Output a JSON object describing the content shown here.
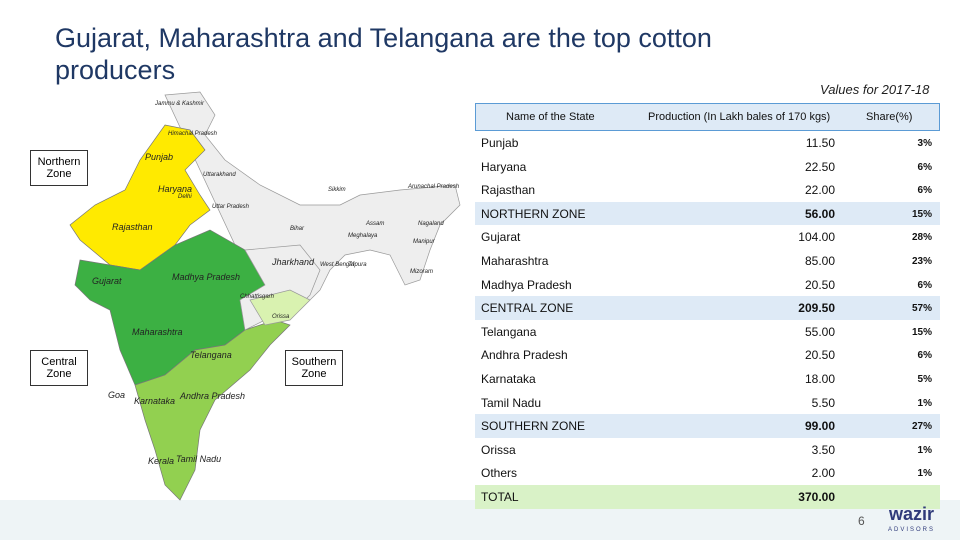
{
  "title": "Gujarat, Maharashtra and Telangana are the top cotton producers",
  "subtitle": "Values for 2017-18",
  "map": {
    "zones": [
      "Northern Zone",
      "Central Zone",
      "Southern Zone"
    ],
    "states": [
      "Jammu & Kashmir",
      "Himachal Pradesh",
      "Punjab",
      "Uttarakhand",
      "Haryana",
      "Delhi",
      "Uttar Pradesh",
      "Sikkim",
      "Arunachal Pradesh",
      "Assam",
      "Nagaland",
      "Rajasthan",
      "Bihar",
      "Meghalaya",
      "Manipur",
      "Jharkhand",
      "West Bengal",
      "Tripura",
      "Mizoram",
      "Gujarat",
      "Madhya Pradesh",
      "Chhattisgarh",
      "Orissa",
      "Maharashtra",
      "Telangana",
      "Goa",
      "Karnataka",
      "Andhra Pradesh",
      "Kerala",
      "Tamil Nadu"
    ]
  },
  "table": {
    "header": [
      "Name of the State",
      "Production (In Lakh bales of 170 kgs)",
      "Share(%)"
    ],
    "rows": [
      [
        "Punjab",
        "11.50",
        "3%"
      ],
      [
        "Haryana",
        "22.50",
        "6%"
      ],
      [
        "Rajasthan",
        "22.00",
        "6%"
      ],
      [
        "NORTHERN ZONE",
        "56.00",
        "15%"
      ],
      [
        "Gujarat",
        "104.00",
        "28%"
      ],
      [
        "Maharashtra",
        "85.00",
        "23%"
      ],
      [
        "Madhya Pradesh",
        "20.50",
        "6%"
      ],
      [
        "CENTRAL ZONE",
        "209.50",
        "57%"
      ],
      [
        "Telangana",
        "55.00",
        "15%"
      ],
      [
        "Andhra Pradesh",
        "20.50",
        "6%"
      ],
      [
        "Karnataka",
        "18.00",
        "5%"
      ],
      [
        "Tamil Nadu",
        "5.50",
        "1%"
      ],
      [
        "SOUTHERN ZONE",
        "99.00",
        "27%"
      ],
      [
        "Orissa",
        "3.50",
        "1%"
      ],
      [
        "Others",
        "2.00",
        "1%"
      ],
      [
        "TOTAL",
        "370.00"
      ]
    ]
  },
  "page_number": "6",
  "logo": {
    "name": "wazir",
    "tagline": "ADVISORS"
  }
}
